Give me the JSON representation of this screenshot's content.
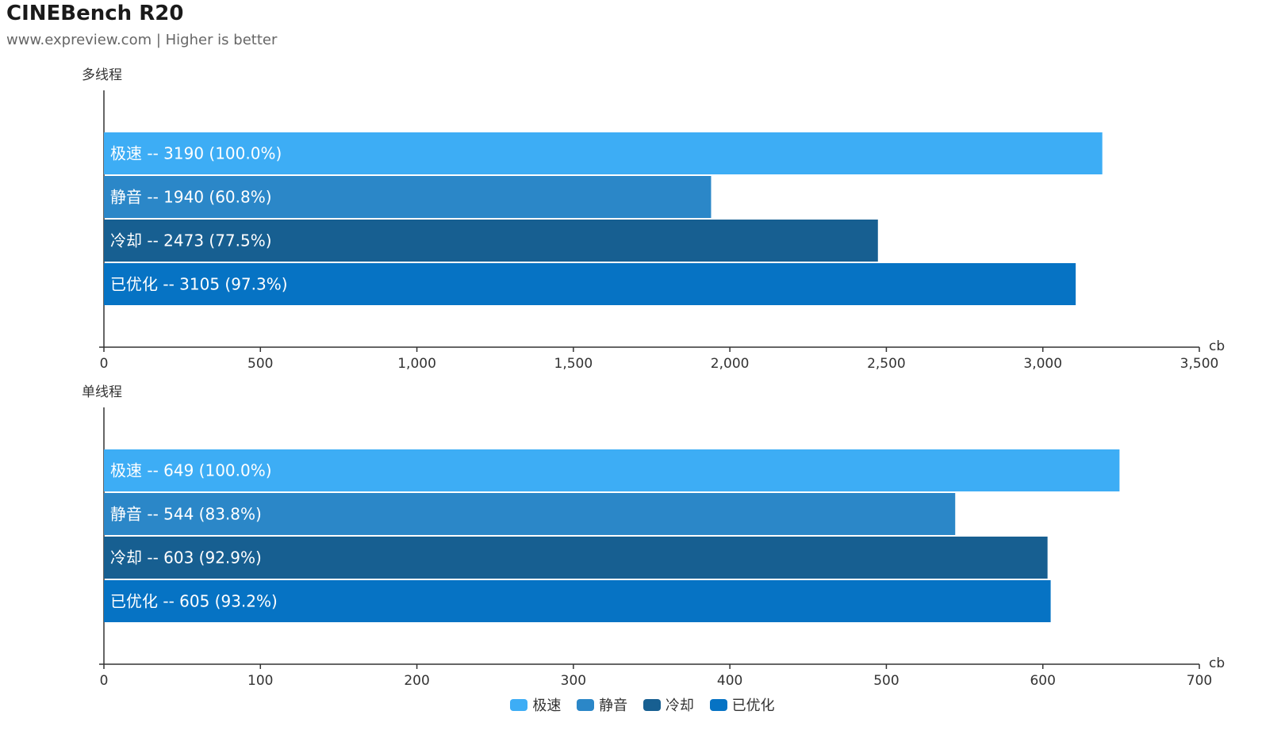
{
  "title": "CINEBench R20",
  "subtitle": "www.expreview.com | Higher is better",
  "legend": [
    {
      "label": "极速",
      "color": "#3dadf5"
    },
    {
      "label": "静音",
      "color": "#2b87c8"
    },
    {
      "label": "冷却",
      "color": "#175f91"
    },
    {
      "label": "已优化",
      "color": "#0673c4"
    }
  ],
  "chart_data": [
    {
      "type": "bar",
      "orientation": "horizontal",
      "title": "多线程",
      "unit": "cb",
      "xlim": [
        0,
        3500
      ],
      "ticks": [
        "0",
        "500",
        "1,000",
        "1,500",
        "2,000",
        "2,500",
        "3,000",
        "3,500"
      ],
      "tick_values": [
        0,
        500,
        1000,
        1500,
        2000,
        2500,
        3000,
        3500
      ],
      "bars": [
        {
          "name": "极速",
          "value": 3190,
          "label": "3190 (100.0%)",
          "color": "#3dadf5"
        },
        {
          "name": "静音",
          "value": 1940,
          "label": "1940 (60.8%)",
          "color": "#2b87c8"
        },
        {
          "name": "冷却",
          "value": 2473,
          "label": "2473 (77.5%)",
          "color": "#175f91"
        },
        {
          "name": "已优化",
          "value": 3105,
          "label": "3105 (97.3%)",
          "color": "#0673c4"
        }
      ]
    },
    {
      "type": "bar",
      "orientation": "horizontal",
      "title": "单线程",
      "unit": "cb",
      "xlim": [
        0,
        700
      ],
      "ticks": [
        "0",
        "100",
        "200",
        "300",
        "400",
        "500",
        "600",
        "700"
      ],
      "tick_values": [
        0,
        100,
        200,
        300,
        400,
        500,
        600,
        700
      ],
      "bars": [
        {
          "name": "极速",
          "value": 649,
          "label": "649 (100.0%)",
          "color": "#3dadf5"
        },
        {
          "name": "静音",
          "value": 544,
          "label": "544 (83.8%)",
          "color": "#2b87c8"
        },
        {
          "name": "冷却",
          "value": 603,
          "label": "603 (92.9%)",
          "color": "#175f91"
        },
        {
          "name": "已优化",
          "value": 605,
          "label": "605 (93.2%)",
          "color": "#0673c4"
        }
      ]
    }
  ]
}
